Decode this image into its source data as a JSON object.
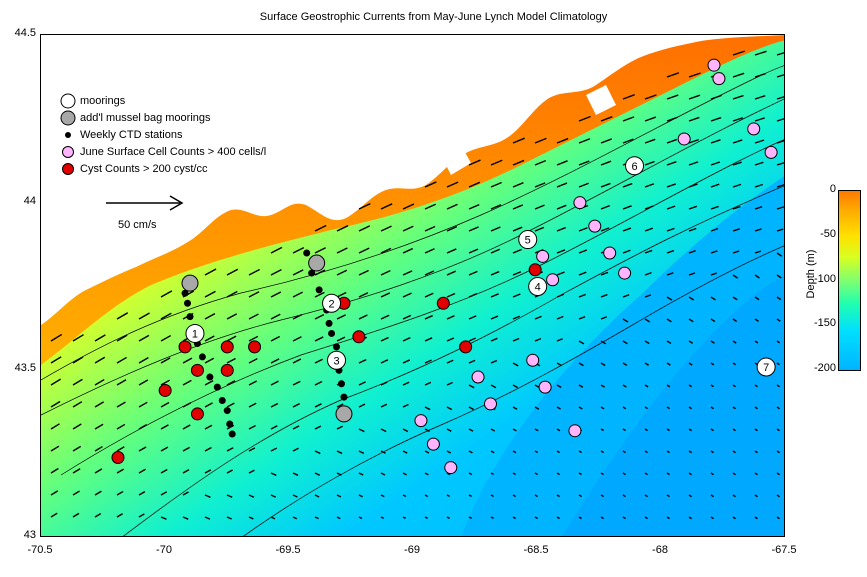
{
  "title": "Surface Geostrophic Currents from May-June Lynch Model Climatology",
  "axes": {
    "x_ticks": [
      "-70.5",
      "-70",
      "-69.5",
      "-69",
      "-68.5",
      "-68",
      "-67.5"
    ],
    "y_ticks": [
      "44.5",
      "44",
      "43.5",
      "43"
    ],
    "xlim": [
      -70.5,
      -67.5
    ],
    "ylim": [
      43,
      44.5
    ]
  },
  "legend": {
    "moorings": "moorings",
    "mussel": "add'l mussel bag moorings",
    "ctd": "Weekly CTD stations",
    "cells": "June Surface Cell Counts > 400 cells/l",
    "cysts": "Cyst Counts > 200 cyst/cc"
  },
  "scale": {
    "label": "50 cm/s"
  },
  "colorbar": {
    "title": "Depth (m)",
    "ticks": [
      "0",
      "-50",
      "-100",
      "-150",
      "-200"
    ]
  },
  "colors": {
    "land": "#ffffff",
    "shallow": "#ff7a00",
    "deep": "#00b4ff",
    "mooring_fill": "#ffffff",
    "mussel_fill": "#a8a8a8",
    "ctd_fill": "#000000",
    "cell_fill": "#ffb4ff",
    "cyst_fill": "#e00000"
  },
  "moorings": [
    {
      "label": "1",
      "lon": -69.88,
      "lat": 43.61
    },
    {
      "label": "2",
      "lon": -69.33,
      "lat": 43.7
    },
    {
      "label": "3",
      "lon": -69.31,
      "lat": 43.53
    },
    {
      "label": "4",
      "lon": -68.5,
      "lat": 43.75
    },
    {
      "label": "5",
      "lon": -68.54,
      "lat": 43.89
    },
    {
      "label": "6",
      "lon": -68.11,
      "lat": 44.11
    },
    {
      "label": "7",
      "lon": -67.58,
      "lat": 43.51
    }
  ],
  "mussel_moorings": [
    {
      "lon": -69.9,
      "lat": 43.76
    },
    {
      "lon": -69.39,
      "lat": 43.82
    },
    {
      "lon": -69.28,
      "lat": 43.37
    }
  ],
  "ctd_stations": [
    {
      "lon": -69.92,
      "lat": 43.73
    },
    {
      "lon": -69.91,
      "lat": 43.7
    },
    {
      "lon": -69.9,
      "lat": 43.66
    },
    {
      "lon": -69.89,
      "lat": 43.62
    },
    {
      "lon": -69.87,
      "lat": 43.58
    },
    {
      "lon": -69.85,
      "lat": 43.54
    },
    {
      "lon": -69.82,
      "lat": 43.48
    },
    {
      "lon": -69.79,
      "lat": 43.45
    },
    {
      "lon": -69.77,
      "lat": 43.41
    },
    {
      "lon": -69.75,
      "lat": 43.38
    },
    {
      "lon": -69.74,
      "lat": 43.34
    },
    {
      "lon": -69.73,
      "lat": 43.31
    },
    {
      "lon": -69.43,
      "lat": 43.85
    },
    {
      "lon": -69.41,
      "lat": 43.79
    },
    {
      "lon": -69.38,
      "lat": 43.74
    },
    {
      "lon": -69.35,
      "lat": 43.68
    },
    {
      "lon": -69.34,
      "lat": 43.64
    },
    {
      "lon": -69.33,
      "lat": 43.61
    },
    {
      "lon": -69.31,
      "lat": 43.57
    },
    {
      "lon": -69.3,
      "lat": 43.5
    },
    {
      "lon": -69.29,
      "lat": 43.46
    },
    {
      "lon": -69.28,
      "lat": 43.42
    }
  ],
  "cell_stations": [
    {
      "lon": -67.79,
      "lat": 44.41
    },
    {
      "lon": -67.77,
      "lat": 44.37
    },
    {
      "lon": -67.91,
      "lat": 44.19
    },
    {
      "lon": -67.63,
      "lat": 44.22
    },
    {
      "lon": -67.56,
      "lat": 44.15
    },
    {
      "lon": -68.33,
      "lat": 44.0
    },
    {
      "lon": -68.27,
      "lat": 43.93
    },
    {
      "lon": -68.21,
      "lat": 43.85
    },
    {
      "lon": -68.15,
      "lat": 43.79
    },
    {
      "lon": -68.48,
      "lat": 43.84
    },
    {
      "lon": -68.44,
      "lat": 43.77
    },
    {
      "lon": -68.52,
      "lat": 43.53
    },
    {
      "lon": -68.47,
      "lat": 43.45
    },
    {
      "lon": -68.74,
      "lat": 43.48
    },
    {
      "lon": -68.69,
      "lat": 43.4
    },
    {
      "lon": -68.35,
      "lat": 43.32
    },
    {
      "lon": -68.97,
      "lat": 43.35
    },
    {
      "lon": -68.92,
      "lat": 43.28
    },
    {
      "lon": -68.85,
      "lat": 43.21
    }
  ],
  "cyst_stations": [
    {
      "lon": -70.19,
      "lat": 43.24
    },
    {
      "lon": -70.0,
      "lat": 43.44
    },
    {
      "lon": -69.92,
      "lat": 43.57
    },
    {
      "lon": -69.87,
      "lat": 43.5
    },
    {
      "lon": -69.75,
      "lat": 43.57
    },
    {
      "lon": -69.75,
      "lat": 43.5
    },
    {
      "lon": -69.64,
      "lat": 43.57
    },
    {
      "lon": -69.87,
      "lat": 43.37
    },
    {
      "lon": -69.28,
      "lat": 43.7
    },
    {
      "lon": -69.22,
      "lat": 43.6
    },
    {
      "lon": -68.88,
      "lat": 43.7
    },
    {
      "lon": -68.79,
      "lat": 43.57
    },
    {
      "lon": -68.51,
      "lat": 43.8
    }
  ]
}
